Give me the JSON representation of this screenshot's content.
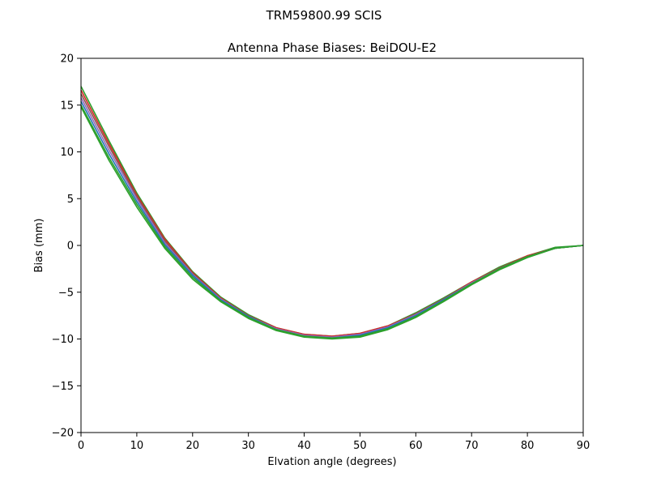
{
  "suptitle": "TRM59800.99      SCIS",
  "chart_data": {
    "type": "line",
    "title": "Antenna Phase Biases: BeiDOU-E2",
    "xlabel": "Elvation angle (degrees)",
    "ylabel": "Bias (mm)",
    "xlim": [
      0,
      90
    ],
    "ylim": [
      -20,
      20
    ],
    "xticks": [
      0,
      10,
      20,
      30,
      40,
      50,
      60,
      70,
      80,
      90
    ],
    "yticks": [
      -20,
      -15,
      -10,
      -5,
      0,
      5,
      10,
      15,
      20
    ],
    "ytick_labels": [
      "−20",
      "−15",
      "−10",
      "−5",
      "0",
      "5",
      "10",
      "15",
      "20"
    ],
    "grid": false,
    "x": [
      0,
      5,
      10,
      15,
      20,
      25,
      30,
      35,
      40,
      45,
      50,
      55,
      60,
      65,
      70,
      75,
      80,
      85,
      90
    ],
    "series": [
      {
        "color": "#2ca02c",
        "values": [
          17.0,
          11.2,
          5.6,
          0.8,
          -2.8,
          -5.5,
          -7.4,
          -8.8,
          -9.5,
          -9.7,
          -9.4,
          -8.6,
          -7.2,
          -5.6,
          -3.9,
          -2.3,
          -1.1,
          -0.2,
          0.0
        ]
      },
      {
        "color": "#d62728",
        "values": [
          16.6,
          10.9,
          5.4,
          0.7,
          -2.9,
          -5.6,
          -7.5,
          -8.8,
          -9.5,
          -9.7,
          -9.4,
          -8.6,
          -7.3,
          -5.7,
          -3.9,
          -2.4,
          -1.1,
          -0.3,
          0.0
        ]
      },
      {
        "color": "#8c564b",
        "values": [
          16.2,
          10.6,
          5.2,
          0.5,
          -3.0,
          -5.7,
          -7.5,
          -8.9,
          -9.6,
          -9.8,
          -9.5,
          -8.7,
          -7.3,
          -5.7,
          -4.0,
          -2.4,
          -1.2,
          -0.3,
          0.0
        ]
      },
      {
        "color": "#9467bd",
        "values": [
          15.8,
          10.2,
          5.0,
          0.3,
          -3.1,
          -5.7,
          -7.6,
          -8.9,
          -9.6,
          -9.8,
          -9.5,
          -8.7,
          -7.4,
          -5.8,
          -4.0,
          -2.5,
          -1.2,
          -0.3,
          0.0
        ]
      },
      {
        "color": "#1f77b4",
        "values": [
          15.4,
          9.8,
          4.7,
          0.1,
          -3.2,
          -5.8,
          -7.6,
          -9.0,
          -9.7,
          -9.9,
          -9.6,
          -8.8,
          -7.5,
          -5.8,
          -4.1,
          -2.5,
          -1.2,
          -0.3,
          0.0
        ]
      },
      {
        "color": "#2ca02c",
        "values": [
          15.0,
          9.4,
          4.4,
          -0.1,
          -3.4,
          -5.9,
          -7.7,
          -9.0,
          -9.7,
          -9.9,
          -9.7,
          -8.9,
          -7.6,
          -5.9,
          -4.1,
          -2.5,
          -1.2,
          -0.3,
          0.0
        ]
      },
      {
        "color": "#2ca02c",
        "values": [
          14.8,
          9.1,
          4.1,
          -0.3,
          -3.6,
          -6.0,
          -7.8,
          -9.1,
          -9.8,
          -10.0,
          -9.8,
          -9.0,
          -7.7,
          -6.0,
          -4.2,
          -2.6,
          -1.3,
          -0.3,
          0.0
        ]
      }
    ]
  }
}
